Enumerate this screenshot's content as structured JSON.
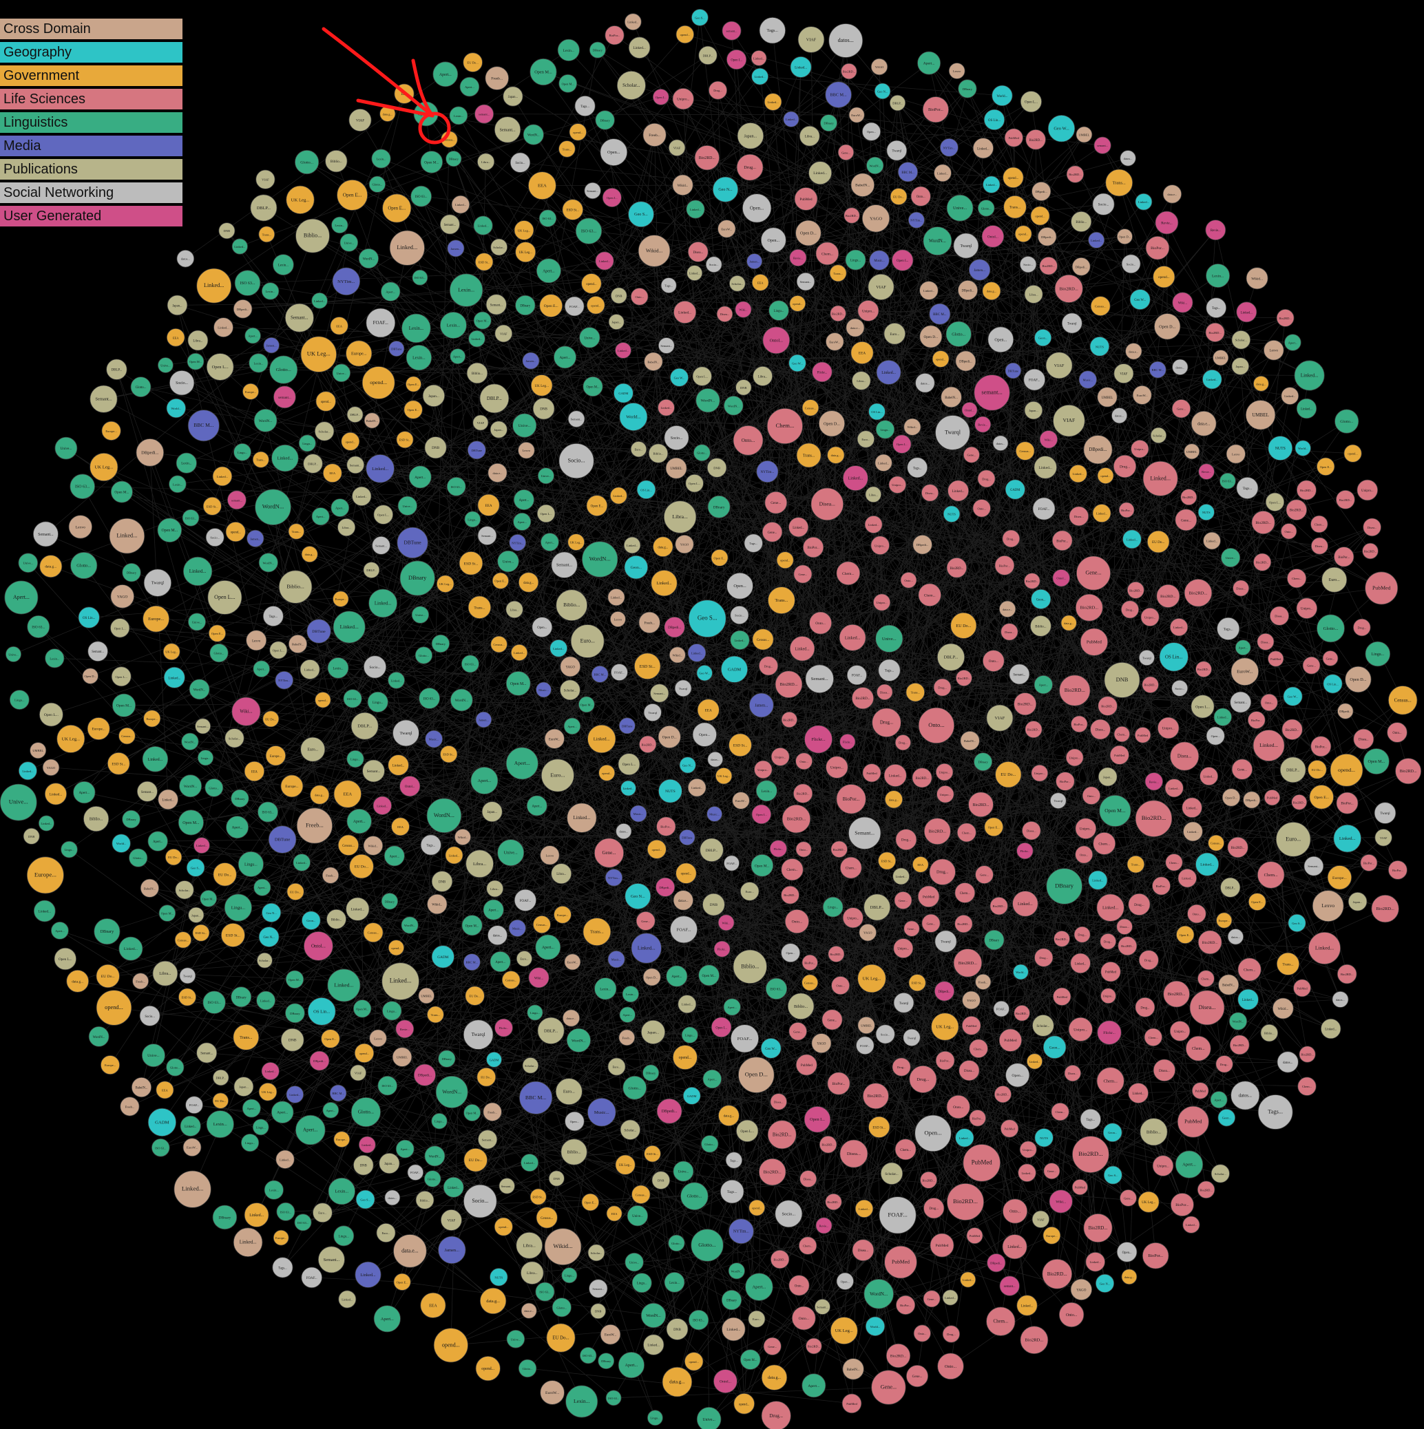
{
  "legend": [
    {
      "label": "Cross Domain",
      "color": "#c9a58b"
    },
    {
      "label": "Geography",
      "color": "#2ec4c6"
    },
    {
      "label": "Government",
      "color": "#e8a93a"
    },
    {
      "label": "Life Sciences",
      "color": "#d67680"
    },
    {
      "label": "Linguistics",
      "color": "#38ad83"
    },
    {
      "label": "Media",
      "color": "#6068bf"
    },
    {
      "label": "Publications",
      "color": "#b7b48a"
    },
    {
      "label": "Social Networking",
      "color": "#bcbcbc"
    },
    {
      "label": "User Generated",
      "color": "#cf4f88"
    }
  ],
  "annotation": {
    "color": "#ff1a1a"
  },
  "node_labels": {
    "cross": [
      "Linked...",
      "DBpedi...",
      "EuroW...",
      "Open D...",
      "BabelN...",
      "Lexvo",
      "data.e...",
      "Freeb...",
      "Wikid...",
      "YAGO",
      "UMBEL",
      "Linked..."
    ],
    "geo": [
      "Geon...",
      "Linked...",
      "OS Lin...",
      "NUTS",
      "Geo S...",
      "Geo W...",
      "World...",
      "Geo N...",
      "GADM",
      "Linked..."
    ],
    "gov": [
      "opend...",
      "Linked...",
      "data.g...",
      "EU Do...",
      "Open E...",
      "UK Leg...",
      "ESD St...",
      "Europe...",
      "Census...",
      "EEA",
      "Trans...",
      "opend..."
    ],
    "life": [
      "Bio2RD...",
      "Linked...",
      "Unipro...",
      "Gene...",
      "BioPor...",
      "Drug...",
      "Chem...",
      "Bio2RD...",
      "PubMed",
      "Disea...",
      "Bio2RD...",
      "Onto..."
    ],
    "ling": [
      "Apert...",
      "Lingu...",
      "Linked...",
      "Open M...",
      "Glotto...",
      "WordN...",
      "Lexin...",
      "Unive...",
      "DBnary",
      "Apert...",
      "ISO 63..."
    ],
    "media": [
      "DBTune",
      "BBC M...",
      "Jamen...",
      "Music...",
      "NYTim...",
      "Linked..."
    ],
    "pub": [
      "Linked...",
      "DBLP...",
      "Biblio...",
      "Open L...",
      "Scholar...",
      "Libra...",
      "DNB",
      "VIAF",
      "Euro...",
      "Semant...",
      "Japan..."
    ],
    "social": [
      "datos...",
      "Socio...",
      "FOAF...",
      "Twarql",
      "Tags...",
      "Open...",
      "Semant..."
    ],
    "ugc": [
      "Wiki...",
      "Flickr...",
      "Linked...",
      "Revie...",
      "Open I...",
      "Ontol...",
      "semant...",
      "DBpedi..."
    ]
  }
}
